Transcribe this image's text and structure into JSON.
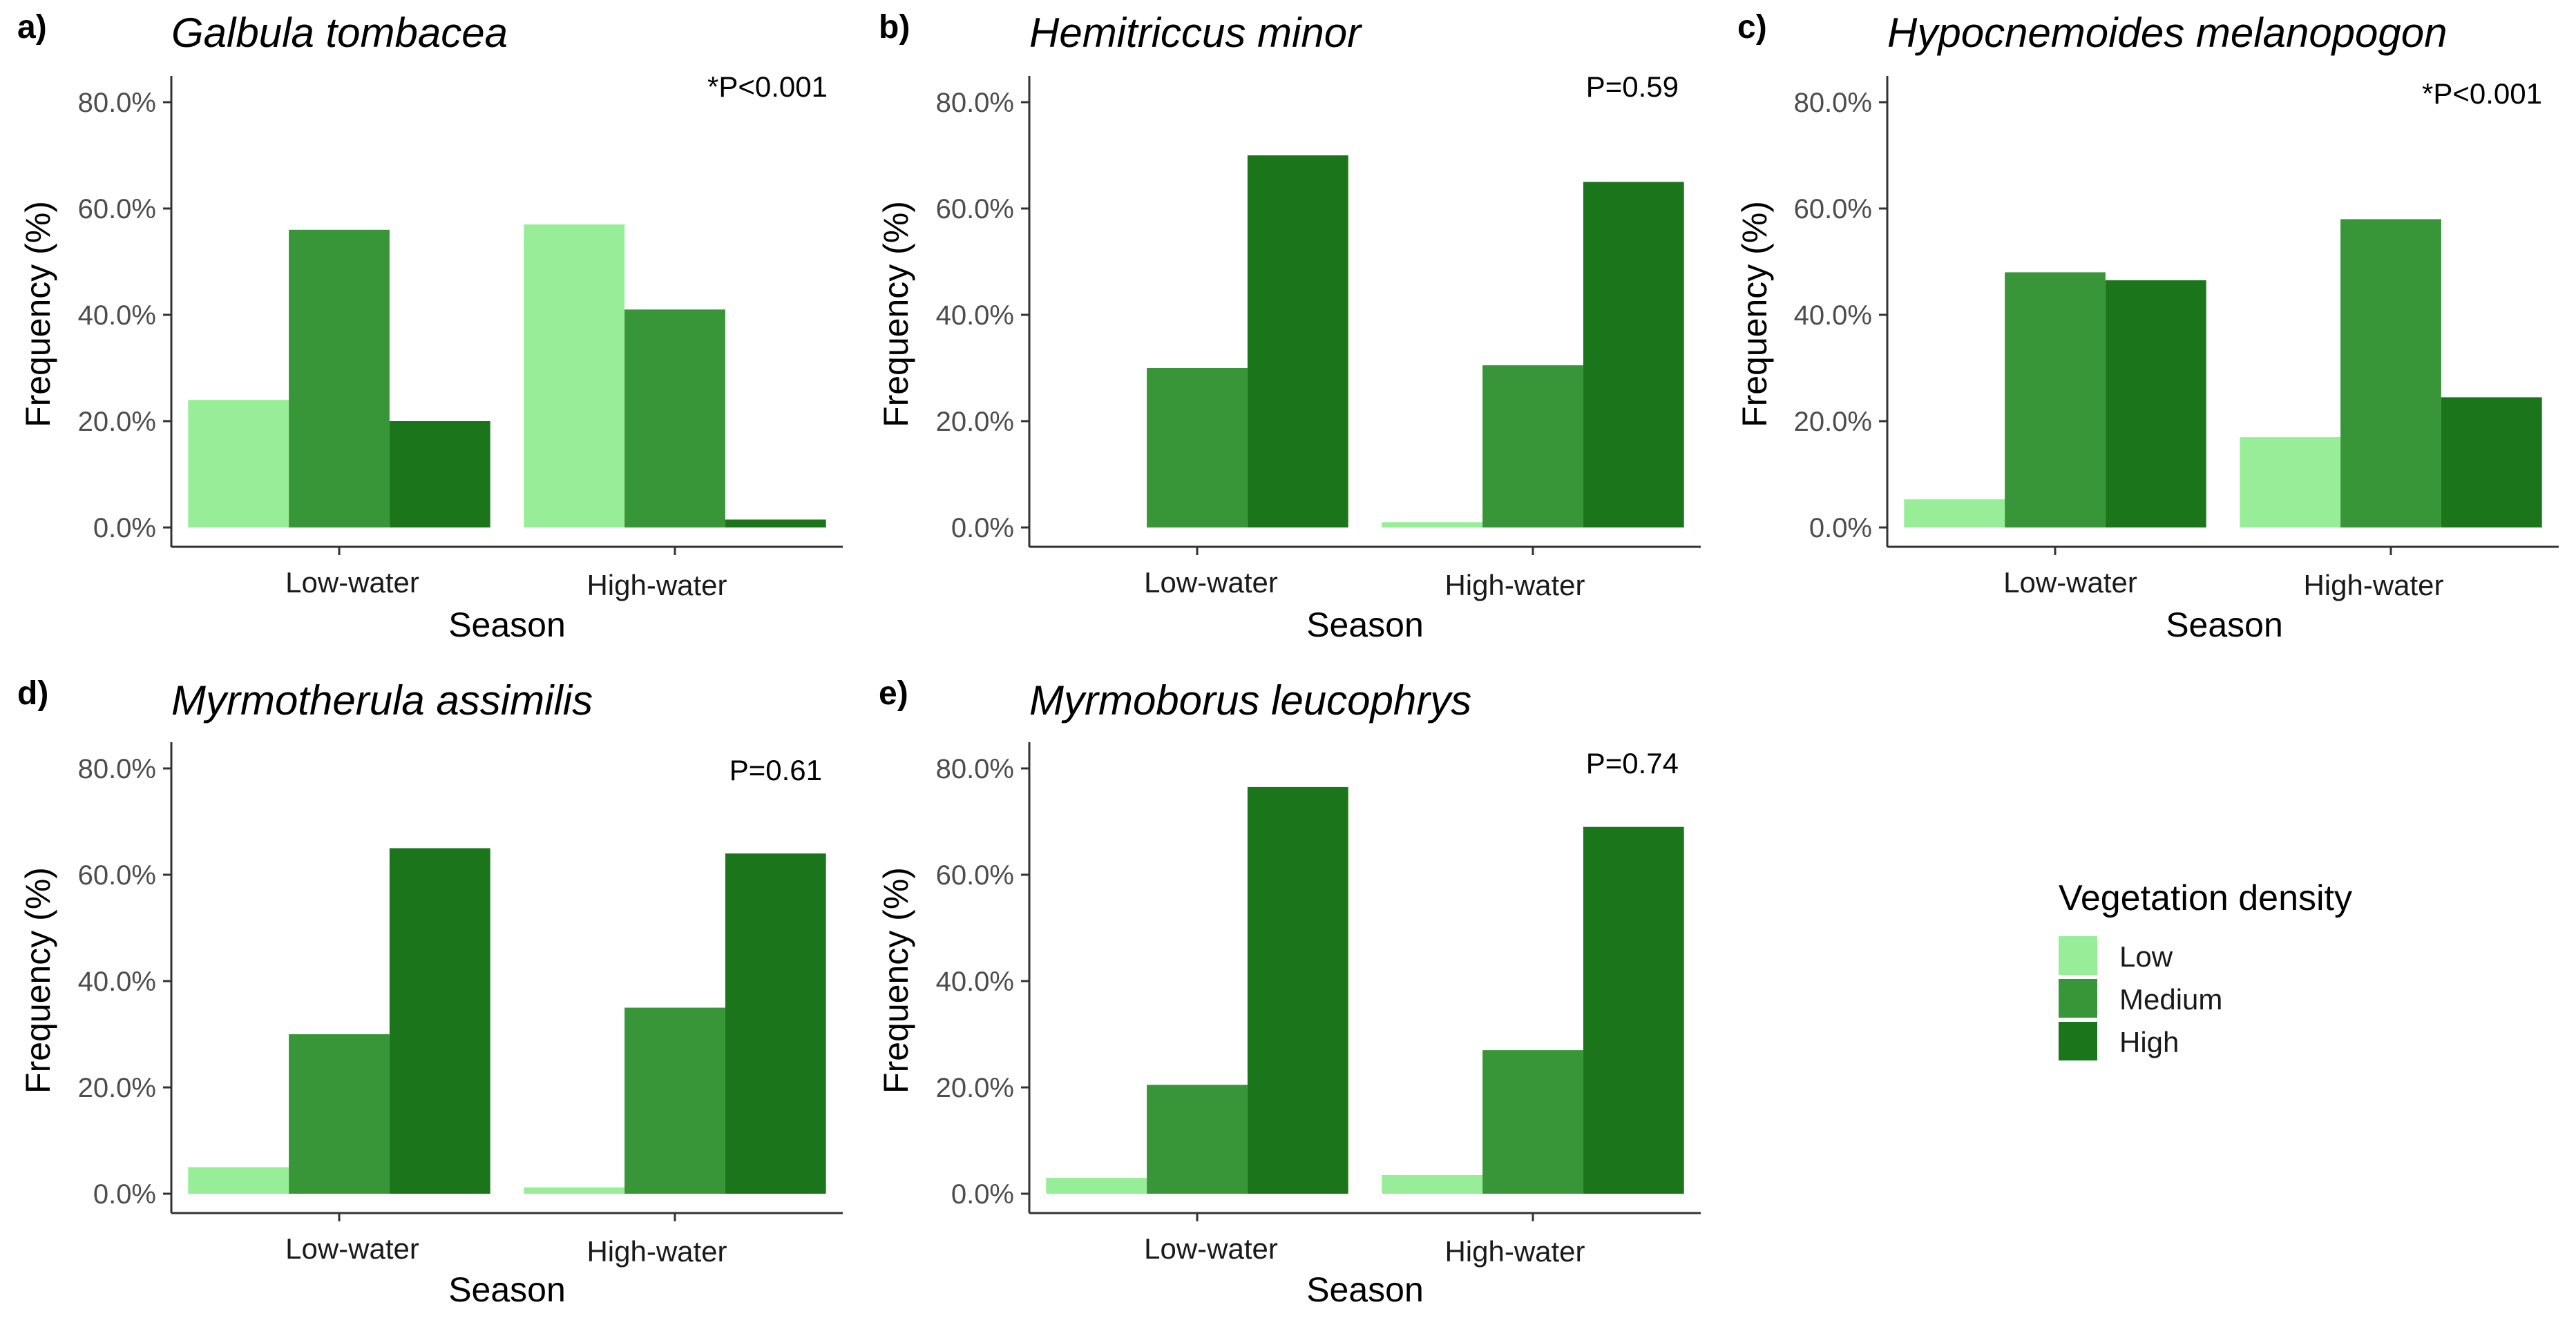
{
  "legend": {
    "title": "Vegetation density",
    "entries": [
      {
        "label": "Low",
        "color": "#98EE98"
      },
      {
        "label": "Medium",
        "color": "#389638"
      },
      {
        "label": "High",
        "color": "#1B761B"
      }
    ]
  },
  "chart_data": [
    {
      "panel": "a)",
      "type": "bar",
      "title": "Galbula tombacea",
      "annotation": "*P<0.001",
      "xlabel": "Season",
      "ylabel": "Frequency (%)",
      "ylim": [
        0,
        80
      ],
      "yticks": [
        "0.0%",
        "20.0%",
        "40.0%",
        "60.0%",
        "80.0%"
      ],
      "categories": [
        "Low-water",
        "High-water"
      ],
      "series": [
        {
          "name": "Low",
          "values": [
            24,
            57
          ]
        },
        {
          "name": "Medium",
          "values": [
            56,
            41
          ]
        },
        {
          "name": "High",
          "values": [
            20,
            1.5
          ]
        }
      ]
    },
    {
      "panel": "b)",
      "type": "bar",
      "title": "Hemitriccus minor",
      "annotation": "P=0.59",
      "xlabel": "Season",
      "ylabel": "Frequency (%)",
      "ylim": [
        0,
        80
      ],
      "yticks": [
        "0.0%",
        "20.0%",
        "40.0%",
        "60.0%",
        "80.0%"
      ],
      "categories": [
        "Low-water",
        "High-water"
      ],
      "series": [
        {
          "name": "Low",
          "values": [
            0,
            1
          ]
        },
        {
          "name": "Medium",
          "values": [
            30,
            30.5
          ]
        },
        {
          "name": "High",
          "values": [
            70,
            65
          ]
        }
      ]
    },
    {
      "panel": "c)",
      "type": "bar",
      "title": "Hypocnemoides melanopogon",
      "annotation": "*P<0.001",
      "xlabel": "Season",
      "ylabel": "Frequency (%)",
      "ylim": [
        0,
        80
      ],
      "yticks": [
        "0.0%",
        "20.0%",
        "40.0%",
        "60.0%",
        "80.0%"
      ],
      "categories": [
        "Low-water",
        "High-water"
      ],
      "series": [
        {
          "name": "Low",
          "values": [
            5.3,
            17
          ]
        },
        {
          "name": "Medium",
          "values": [
            48,
            58
          ]
        },
        {
          "name": "High",
          "values": [
            46.5,
            24.5
          ]
        }
      ]
    },
    {
      "panel": "d)",
      "type": "bar",
      "title": "Myrmotherula assimilis",
      "annotation": "P=0.61",
      "xlabel": "Season",
      "ylabel": "Frequency (%)",
      "ylim": [
        0,
        80
      ],
      "yticks": [
        "0.0%",
        "20.0%",
        "40.0%",
        "60.0%",
        "80.0%"
      ],
      "categories": [
        "Low-water",
        "High-water"
      ],
      "series": [
        {
          "name": "Low",
          "values": [
            5,
            1.2
          ]
        },
        {
          "name": "Medium",
          "values": [
            30,
            35
          ]
        },
        {
          "name": "High",
          "values": [
            65,
            64
          ]
        }
      ]
    },
    {
      "panel": "e)",
      "type": "bar",
      "title": "Myrmoborus leucophrys",
      "annotation": "P=0.74",
      "xlabel": "Season",
      "ylabel": "Frequency (%)",
      "ylim": [
        0,
        80
      ],
      "yticks": [
        "0.0%",
        "20.0%",
        "40.0%",
        "60.0%",
        "80.0%"
      ],
      "categories": [
        "Low-water",
        "High-water"
      ],
      "series": [
        {
          "name": "Low",
          "values": [
            3,
            3.5
          ]
        },
        {
          "name": "Medium",
          "values": [
            20.5,
            27
          ]
        },
        {
          "name": "High",
          "values": [
            76.5,
            69
          ]
        }
      ]
    }
  ]
}
